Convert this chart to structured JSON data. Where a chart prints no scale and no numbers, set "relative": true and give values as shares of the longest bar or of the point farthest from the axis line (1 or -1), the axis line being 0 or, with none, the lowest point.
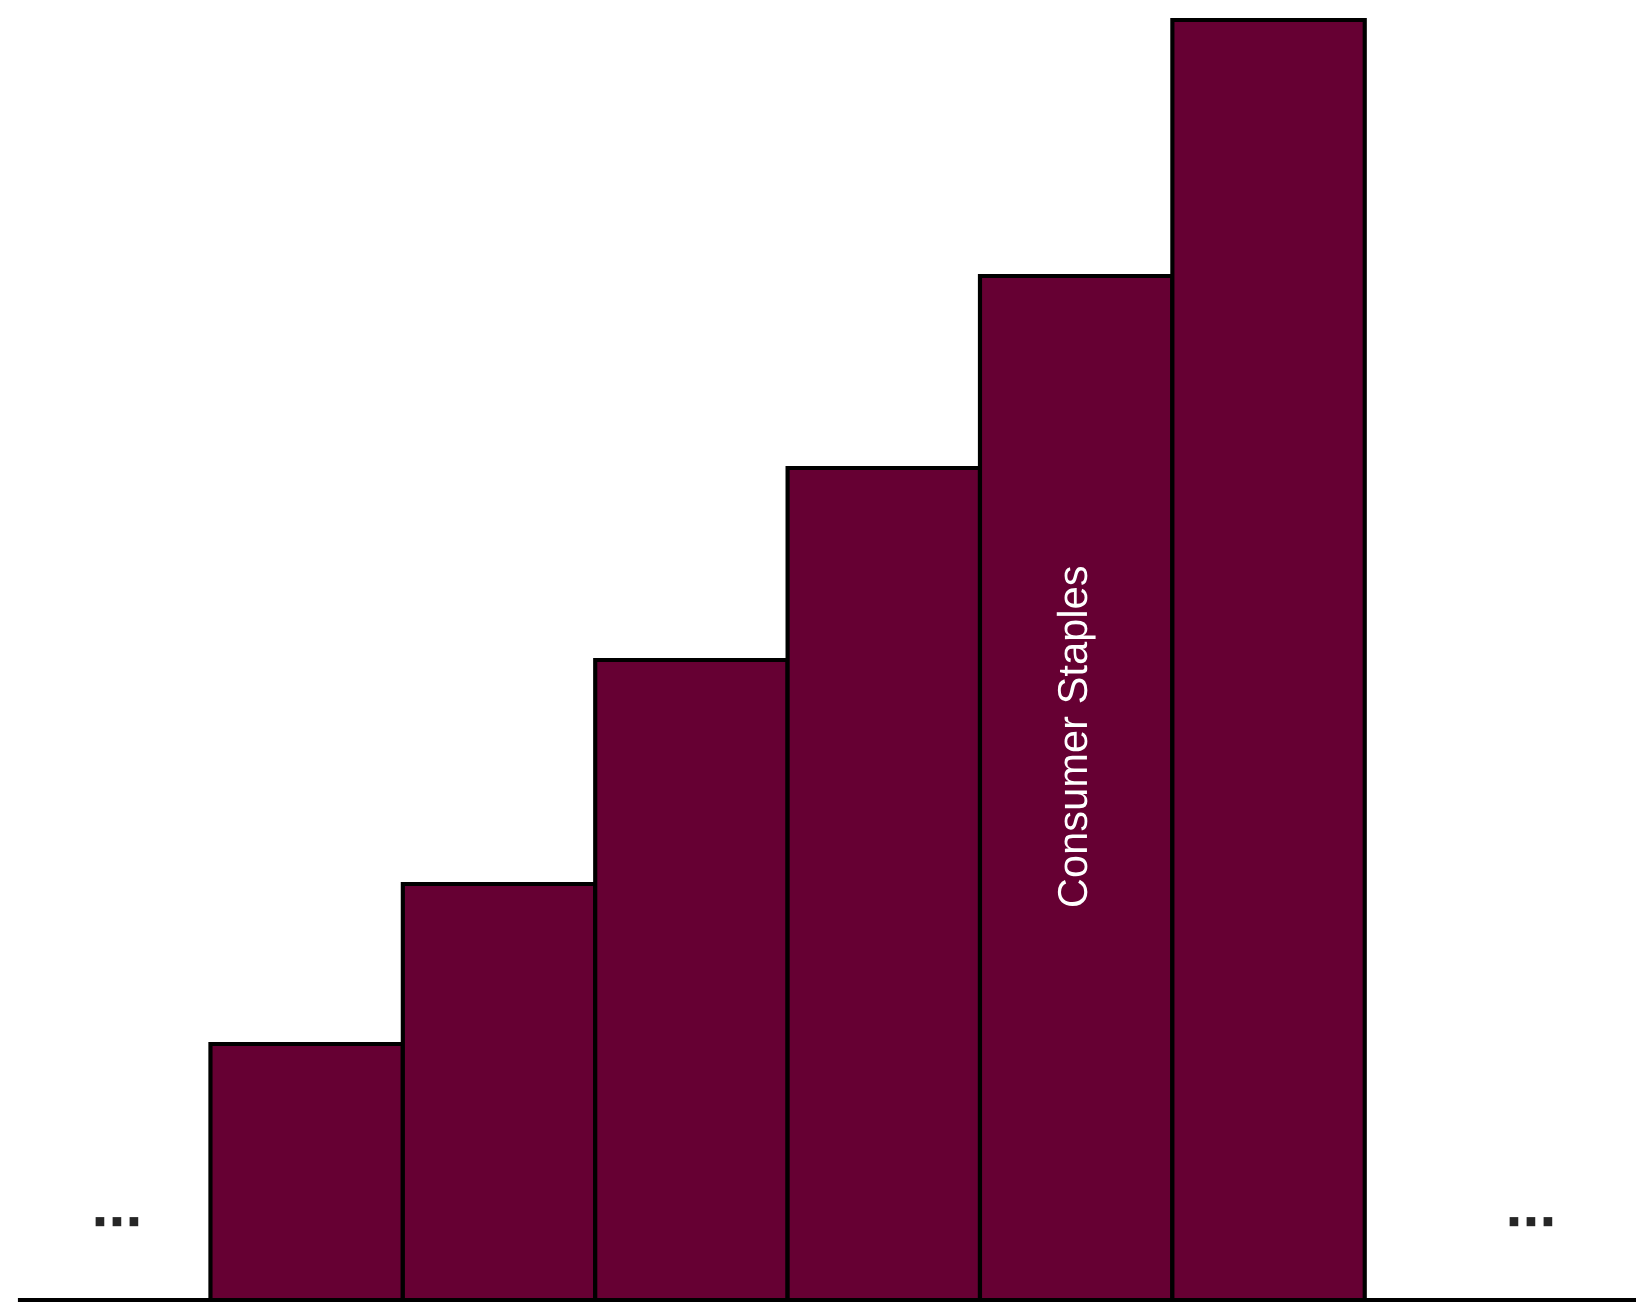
{
  "chart_data": {
    "type": "bar",
    "relative": true,
    "categories": [
      null,
      null,
      null,
      null,
      "Consumer Staples",
      null
    ],
    "values": [
      0.2,
      0.325,
      0.5,
      0.65,
      0.8,
      1.0
    ],
    "color": "#660033",
    "annotations": [
      "...",
      "..."
    ]
  }
}
